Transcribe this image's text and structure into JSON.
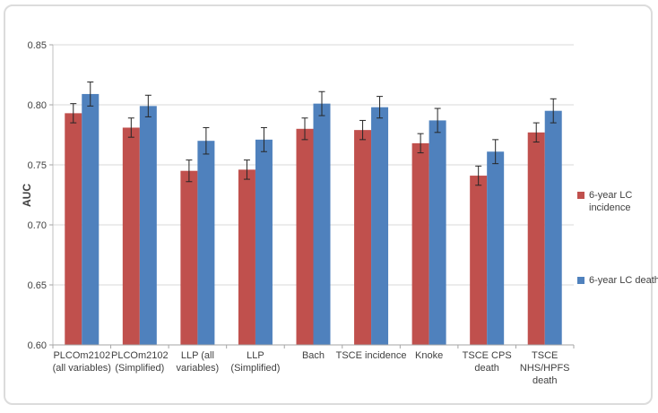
{
  "figure": {
    "background": "#ffffff",
    "frame_border_color": "#dcdcdc",
    "gridline_color": "#d9d9d9",
    "axis_line_color": "#a6a6a6",
    "text_color": "#404040",
    "error_bar_color": "#262626"
  },
  "chart_data": {
    "type": "bar",
    "title": "",
    "xlabel": "",
    "ylabel": "AUC",
    "ylim": [
      0.6,
      0.85
    ],
    "ytick_step": 0.05,
    "ytick_labels": [
      "0.60",
      "0.65",
      "0.70",
      "0.75",
      "0.80",
      "0.85"
    ],
    "grid": true,
    "legend_position": "right",
    "categories": [
      "PLCOm2102 (all variables)",
      "PLCOm2102 (Simplified)",
      "LLP (all variables)",
      "LLP (Simplified)",
      "Bach",
      "TSCE incidence",
      "Knoke",
      "TSCE CPS death",
      "TSCE NHS/HPFS death"
    ],
    "category_lines": [
      [
        "PLCOm2102",
        "(all variables)"
      ],
      [
        "PLCOm2102",
        "(Simplified)"
      ],
      [
        "LLP (all",
        "variables)"
      ],
      [
        "LLP",
        "(Simplified)"
      ],
      [
        "Bach"
      ],
      [
        "TSCE incidence"
      ],
      [
        "Knoke"
      ],
      [
        "TSCE CPS",
        "death"
      ],
      [
        "TSCE",
        "NHS/HPFS",
        "death"
      ]
    ],
    "series": [
      {
        "name": "6-year LC incidence",
        "color": "#C0504D",
        "values": [
          0.793,
          0.781,
          0.745,
          0.746,
          0.78,
          0.779,
          0.768,
          0.741,
          0.777
        ],
        "errors": [
          0.008,
          0.008,
          0.009,
          0.008,
          0.009,
          0.008,
          0.008,
          0.008,
          0.008
        ]
      },
      {
        "name": "6-year LC death",
        "color": "#4F81BD",
        "values": [
          0.809,
          0.799,
          0.77,
          0.771,
          0.801,
          0.798,
          0.787,
          0.761,
          0.795
        ],
        "errors": [
          0.01,
          0.009,
          0.011,
          0.01,
          0.01,
          0.009,
          0.01,
          0.01,
          0.01
        ]
      }
    ]
  },
  "legend": {
    "items": [
      {
        "label": "6-year LC incidence",
        "color": "#C0504D"
      },
      {
        "label": "6-year LC death",
        "color": "#4F81BD"
      }
    ]
  }
}
